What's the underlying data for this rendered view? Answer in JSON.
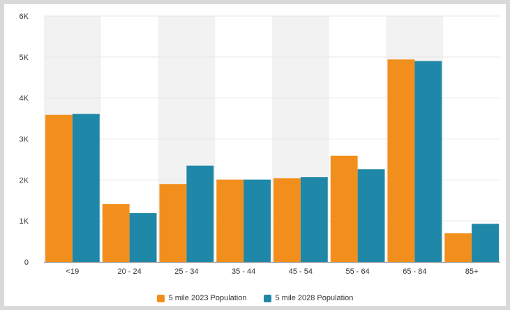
{
  "chart_data": {
    "type": "bar",
    "title": "",
    "xlabel": "",
    "ylabel": "",
    "categories": [
      "<19",
      "20 - 24",
      "25 - 34",
      "35 - 44",
      "45 - 54",
      "55 - 64",
      "65 - 84",
      "85+"
    ],
    "series": [
      {
        "name": "5 mile 2023 Population",
        "color": "#f28f1c",
        "values": [
          3590,
          1410,
          1900,
          2010,
          2040,
          2590,
          4940,
          700
        ]
      },
      {
        "name": "5 mile 2028 Population",
        "color": "#1f87a7",
        "values": [
          3610,
          1190,
          2350,
          2010,
          2070,
          2260,
          4900,
          930
        ]
      }
    ],
    "ylim": [
      0,
      6000
    ],
    "y_ticks": [
      0,
      1000,
      2000,
      3000,
      4000,
      5000,
      6000
    ],
    "y_tick_labels": [
      "0",
      "1K",
      "2K",
      "3K",
      "4K",
      "5K",
      "6K"
    ],
    "grid": true,
    "alternating_band_color": "#f2f2f2",
    "legend_position": "bottom-center"
  }
}
